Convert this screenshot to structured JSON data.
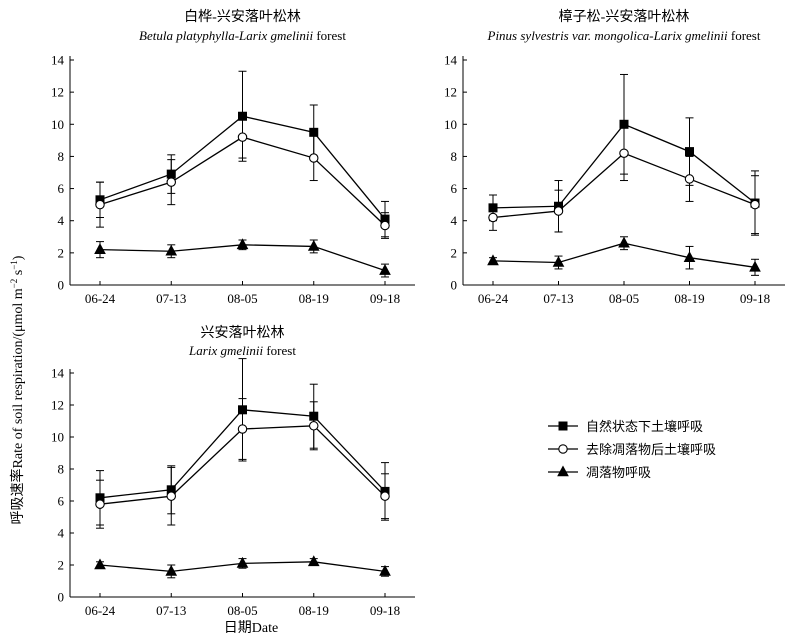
{
  "figure": {
    "ylabel_cn": "呼吸速率",
    "ylabel_en": "Rate of soil respiration/(μmol m",
    "ylabel_sup1": "−2",
    "ylabel_mid": " s",
    "ylabel_sup2": "−1",
    "ylabel_end": ")",
    "xlabel": "日期Date"
  },
  "chart_data": [
    {
      "type": "line",
      "title_cn": "白桦-兴安落叶松林",
      "title_en_italic": "Betula platyphylla-Larix gmelinii",
      "title_en_plain": " forest",
      "categories": [
        "06-24",
        "07-13",
        "08-05",
        "08-19",
        "09-18"
      ],
      "ylim": [
        0,
        14
      ],
      "yticks": [
        0,
        2,
        4,
        6,
        8,
        10,
        12,
        14
      ],
      "grid": false,
      "series": [
        {
          "name": "自然状态下土壤呼吸",
          "marker": "square",
          "values": [
            5.3,
            6.9,
            10.5,
            9.5,
            4.1
          ],
          "errors": [
            1.1,
            1.2,
            2.8,
            1.7,
            1.1
          ]
        },
        {
          "name": "去除凋落物后土壤呼吸",
          "marker": "circle",
          "values": [
            5.0,
            6.4,
            9.2,
            7.9,
            3.7
          ],
          "errors": [
            1.4,
            1.4,
            1.3,
            1.4,
            0.8
          ]
        },
        {
          "name": "凋落物呼吸",
          "marker": "triangle",
          "values": [
            2.2,
            2.1,
            2.5,
            2.4,
            0.9
          ],
          "errors": [
            0.5,
            0.4,
            0.3,
            0.4,
            0.4
          ]
        }
      ]
    },
    {
      "type": "line",
      "title_cn": "樟子松-兴安落叶松林",
      "title_en_italic": "Pinus sylvestris var. mongolica-Larix gmelinii",
      "title_en_plain": " forest",
      "categories": [
        "06-24",
        "07-13",
        "08-05",
        "08-19",
        "09-18"
      ],
      "ylim": [
        0,
        14
      ],
      "yticks": [
        0,
        2,
        4,
        6,
        8,
        10,
        12,
        14
      ],
      "grid": false,
      "series": [
        {
          "name": "自然状态下土壤呼吸",
          "marker": "square",
          "values": [
            4.8,
            4.9,
            10.0,
            8.3,
            5.1
          ],
          "errors": [
            0.8,
            1.6,
            3.1,
            2.1,
            2.0
          ]
        },
        {
          "name": "去除凋落物后土壤呼吸",
          "marker": "circle",
          "values": [
            4.2,
            4.6,
            8.2,
            6.6,
            5.0
          ],
          "errors": [
            0.8,
            1.3,
            1.7,
            1.4,
            1.8
          ]
        },
        {
          "name": "凋落物呼吸",
          "marker": "triangle",
          "values": [
            1.5,
            1.4,
            2.6,
            1.7,
            1.1
          ],
          "errors": [
            0.2,
            0.4,
            0.4,
            0.7,
            0.5
          ]
        }
      ]
    },
    {
      "type": "line",
      "title_cn": "兴安落叶松林",
      "title_en_italic": "Larix gmelinii",
      "title_en_plain": " forest",
      "categories": [
        "06-24",
        "07-13",
        "08-05",
        "08-19",
        "09-18"
      ],
      "ylim": [
        0,
        14
      ],
      "yticks": [
        0,
        2,
        4,
        6,
        8,
        10,
        12,
        14
      ],
      "grid": false,
      "series": [
        {
          "name": "自然状态下土壤呼吸",
          "marker": "square",
          "values": [
            6.2,
            6.7,
            11.7,
            11.3,
            6.6
          ],
          "errors": [
            1.7,
            1.5,
            3.2,
            2.0,
            1.8
          ]
        },
        {
          "name": "去除凋落物后土壤呼吸",
          "marker": "circle",
          "values": [
            5.8,
            6.3,
            10.5,
            10.7,
            6.3
          ],
          "errors": [
            1.5,
            1.8,
            1.9,
            1.5,
            1.4
          ]
        },
        {
          "name": "凋落物呼吸",
          "marker": "triangle",
          "values": [
            2.0,
            1.6,
            2.1,
            2.2,
            1.6
          ],
          "errors": [
            0.2,
            0.4,
            0.3,
            0.2,
            0.3
          ]
        }
      ]
    }
  ],
  "legend": {
    "placement": "right",
    "items": [
      {
        "label": "自然状态下土壤呼吸",
        "marker": "square"
      },
      {
        "label": "去除凋落物后土壤呼吸",
        "marker": "circle"
      },
      {
        "label": "凋落物呼吸",
        "marker": "triangle"
      }
    ]
  }
}
